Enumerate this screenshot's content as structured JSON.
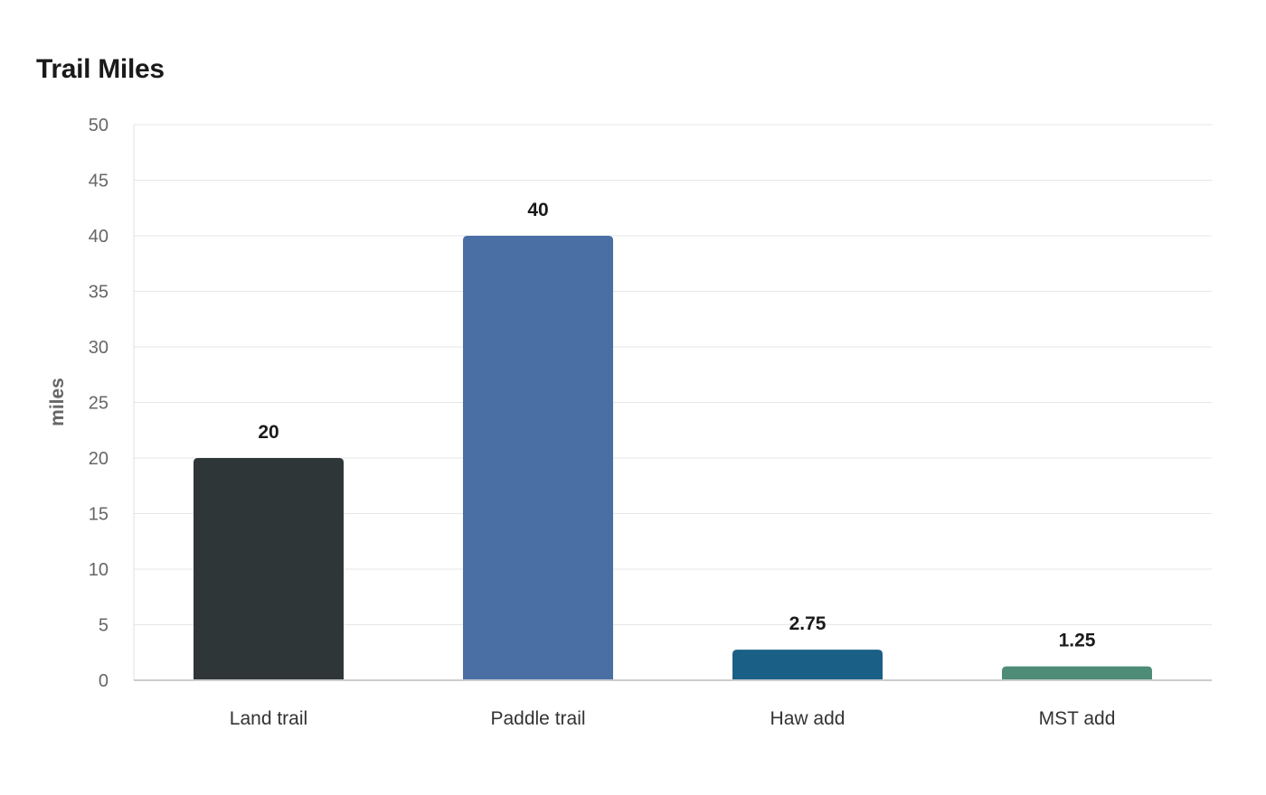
{
  "chart_data": {
    "type": "bar",
    "title": "Trail Miles",
    "xlabel": "",
    "ylabel": "miles",
    "categories": [
      "Land trail",
      "Paddle trail",
      "Haw add",
      "MST add"
    ],
    "values": [
      20,
      40,
      2.75,
      1.25
    ],
    "value_labels": [
      "20",
      "40",
      "2.75",
      "1.25"
    ],
    "colors": [
      "#2e3638",
      "#4a6fa5",
      "#1a5f86",
      "#4e8c78"
    ],
    "ylim": [
      0,
      50
    ],
    "yticks": [
      0,
      5,
      10,
      15,
      20,
      25,
      30,
      35,
      40,
      45,
      50
    ],
    "grid": true,
    "legend": "none"
  }
}
